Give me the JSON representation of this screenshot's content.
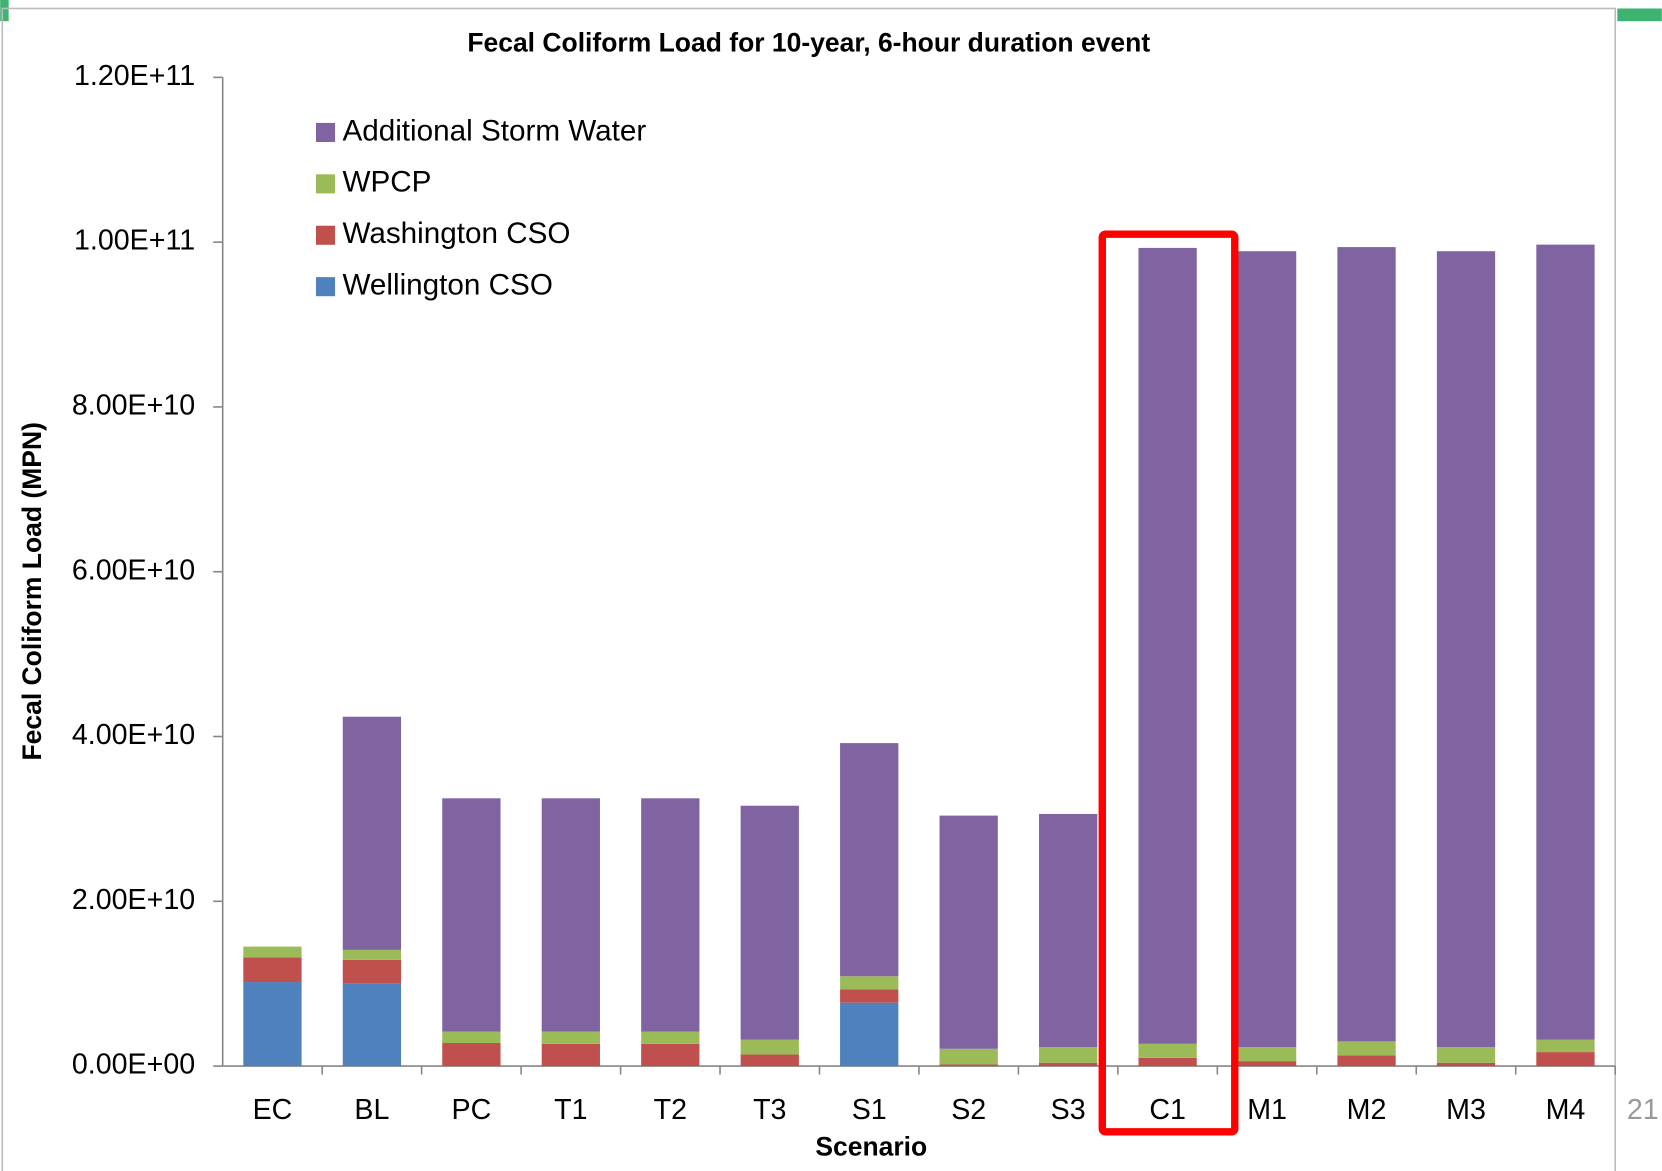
{
  "chart_data": {
    "type": "stacked_bar",
    "title": "Fecal Coliform Load for 10-year, 6-hour duration event",
    "x_label": "Scenario",
    "y_label": "Fecal Coliform Load (MPN)",
    "categories": [
      "EC",
      "BL",
      "PC",
      "T1",
      "T2",
      "T3",
      "S1",
      "S2",
      "S3",
      "C1",
      "M1",
      "M2",
      "M3",
      "M4"
    ],
    "series": [
      {
        "name": "Wellington CSO",
        "color": "#4f81bd",
        "values": [
          10200000000,
          10000000000,
          0,
          0,
          0,
          0,
          7700000000,
          0,
          0,
          0,
          0,
          0,
          0,
          0
        ]
      },
      {
        "name": "Washington CSO",
        "color": "#c0504d",
        "values": [
          3000000000,
          2900000000,
          2800000000,
          2700000000,
          2700000000,
          1400000000,
          1600000000,
          200000000,
          400000000,
          1000000000,
          600000000,
          1300000000,
          400000000,
          1700000000
        ]
      },
      {
        "name": "WPCP",
        "color": "#9bbb59",
        "values": [
          1300000000,
          1200000000,
          1400000000,
          1500000000,
          1500000000,
          1800000000,
          1600000000,
          1900000000,
          1900000000,
          1700000000,
          1700000000,
          1700000000,
          1900000000,
          1500000000
        ]
      },
      {
        "name": "Additional Storm Water",
        "color": "#8064a2",
        "values": [
          0,
          28300000000,
          28300000000,
          28300000000,
          28300000000,
          28400000000,
          28300000000,
          28300000000,
          28300000000,
          96600000000,
          96600000000,
          96400000000,
          96600000000,
          96500000000
        ]
      }
    ],
    "ylim": [
      0,
      120000000000
    ],
    "yticks": [
      {
        "value": 0,
        "label": "0.00E+00"
      },
      {
        "value": 20000000000,
        "label": "2.00E+10"
      },
      {
        "value": 40000000000,
        "label": "4.00E+10"
      },
      {
        "value": 60000000000,
        "label": "6.00E+10"
      },
      {
        "value": 80000000000,
        "label": "8.00E+10"
      },
      {
        "value": 100000000000,
        "label": "1.00E+11"
      },
      {
        "value": 120000000000,
        "label": "1.20E+11"
      }
    ],
    "grid": false,
    "legend_position": "upper left"
  },
  "page_number": "21"
}
